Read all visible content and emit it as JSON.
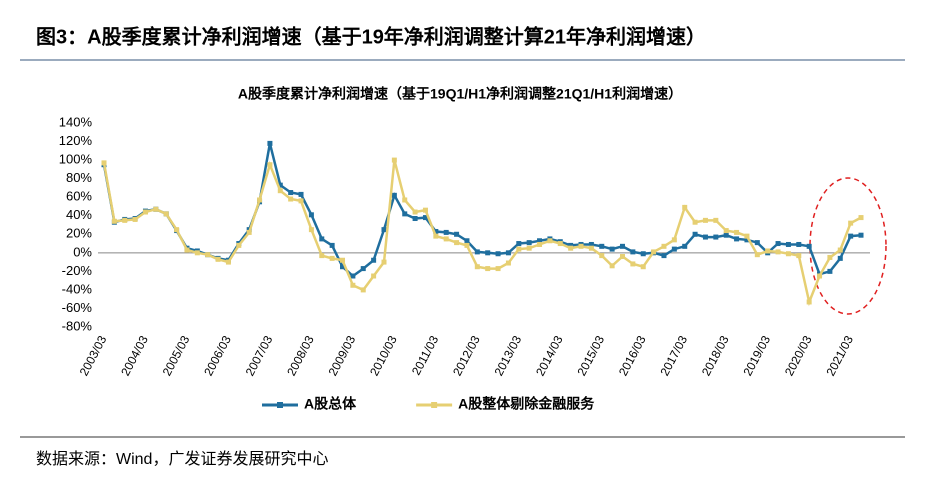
{
  "figure_title": "图3：A股季度累计净利润增速（基于19年净利润调整计算21年净利润增速）",
  "source": "数据来源：Wind，广发证券发展研究中心",
  "chart_data": {
    "type": "line",
    "title": "A股季度累计净利润增速（基于19Q1/H1净利润调整21Q1/H1利润增速）",
    "categories": [
      "2003/03",
      null,
      null,
      null,
      "2004/03",
      null,
      null,
      null,
      "2005/03",
      null,
      null,
      null,
      "2006/03",
      null,
      null,
      null,
      "2007/03",
      null,
      null,
      null,
      "2008/03",
      null,
      null,
      null,
      "2009/03",
      null,
      null,
      null,
      "2010/03",
      null,
      null,
      null,
      "2011/03",
      null,
      null,
      null,
      "2012/03",
      null,
      null,
      null,
      "2013/03",
      null,
      null,
      null,
      "2014/03",
      null,
      null,
      null,
      "2015/03",
      null,
      null,
      null,
      "2016/03",
      null,
      null,
      null,
      "2017/03",
      null,
      null,
      null,
      "2018/03",
      null,
      null,
      null,
      "2019/03",
      null,
      null,
      null,
      "2020/03",
      null,
      null,
      null,
      "2021/03",
      null
    ],
    "series": [
      {
        "name": "A股总体",
        "color": "#1f6e9e",
        "values": [
          95,
          33,
          36,
          37,
          45,
          47,
          42,
          24,
          5,
          2,
          -2,
          -6,
          -8,
          10,
          25,
          55,
          118,
          73,
          65,
          63,
          41,
          15,
          8,
          -15,
          -25,
          -17,
          -8,
          25,
          62,
          42,
          37,
          38,
          23,
          22,
          20,
          13,
          1,
          0,
          -1,
          0,
          10,
          11,
          13,
          15,
          12,
          8,
          9,
          9,
          7,
          4,
          7,
          1,
          -1,
          0,
          -3,
          4,
          7,
          20,
          17,
          17,
          19,
          15,
          14,
          11,
          0,
          10,
          9,
          9,
          7,
          -23,
          -20,
          -6,
          18,
          19
        ]
      },
      {
        "name": "A股整体剔除金融服务",
        "color": "#e6cf72",
        "values": [
          97,
          34,
          35,
          36,
          44,
          47,
          42,
          25,
          3,
          0,
          -2,
          -7,
          -10,
          8,
          22,
          57,
          95,
          67,
          58,
          56,
          25,
          -3,
          -6,
          -8,
          -35,
          -40,
          -25,
          -10,
          100,
          57,
          44,
          46,
          18,
          15,
          11,
          8,
          -15,
          -17,
          -17,
          -11,
          4,
          5,
          9,
          13,
          10,
          5,
          7,
          5,
          -3,
          -14,
          -4,
          -12,
          -15,
          1,
          7,
          14,
          49,
          33,
          35,
          35,
          24,
          22,
          18,
          -2,
          2,
          1,
          -1,
          -3,
          -53,
          -25,
          -5,
          3,
          32,
          38
        ]
      }
    ],
    "ylim": [
      -80,
      140
    ],
    "yticks": [
      {
        "value": -80,
        "label": "-80%"
      },
      {
        "value": -60,
        "label": "-60%"
      },
      {
        "value": -40,
        "label": "-40%"
      },
      {
        "value": -20,
        "label": "-20%"
      },
      {
        "value": 0,
        "label": "0%"
      },
      {
        "value": 20,
        "label": "20%"
      },
      {
        "value": 40,
        "label": "40%"
      },
      {
        "value": 60,
        "label": "60%"
      },
      {
        "value": 80,
        "label": "80%"
      },
      {
        "value": 100,
        "label": "100%"
      },
      {
        "value": 120,
        "label": "120%"
      },
      {
        "value": 140,
        "label": "140%"
      }
    ],
    "grid": false
  }
}
